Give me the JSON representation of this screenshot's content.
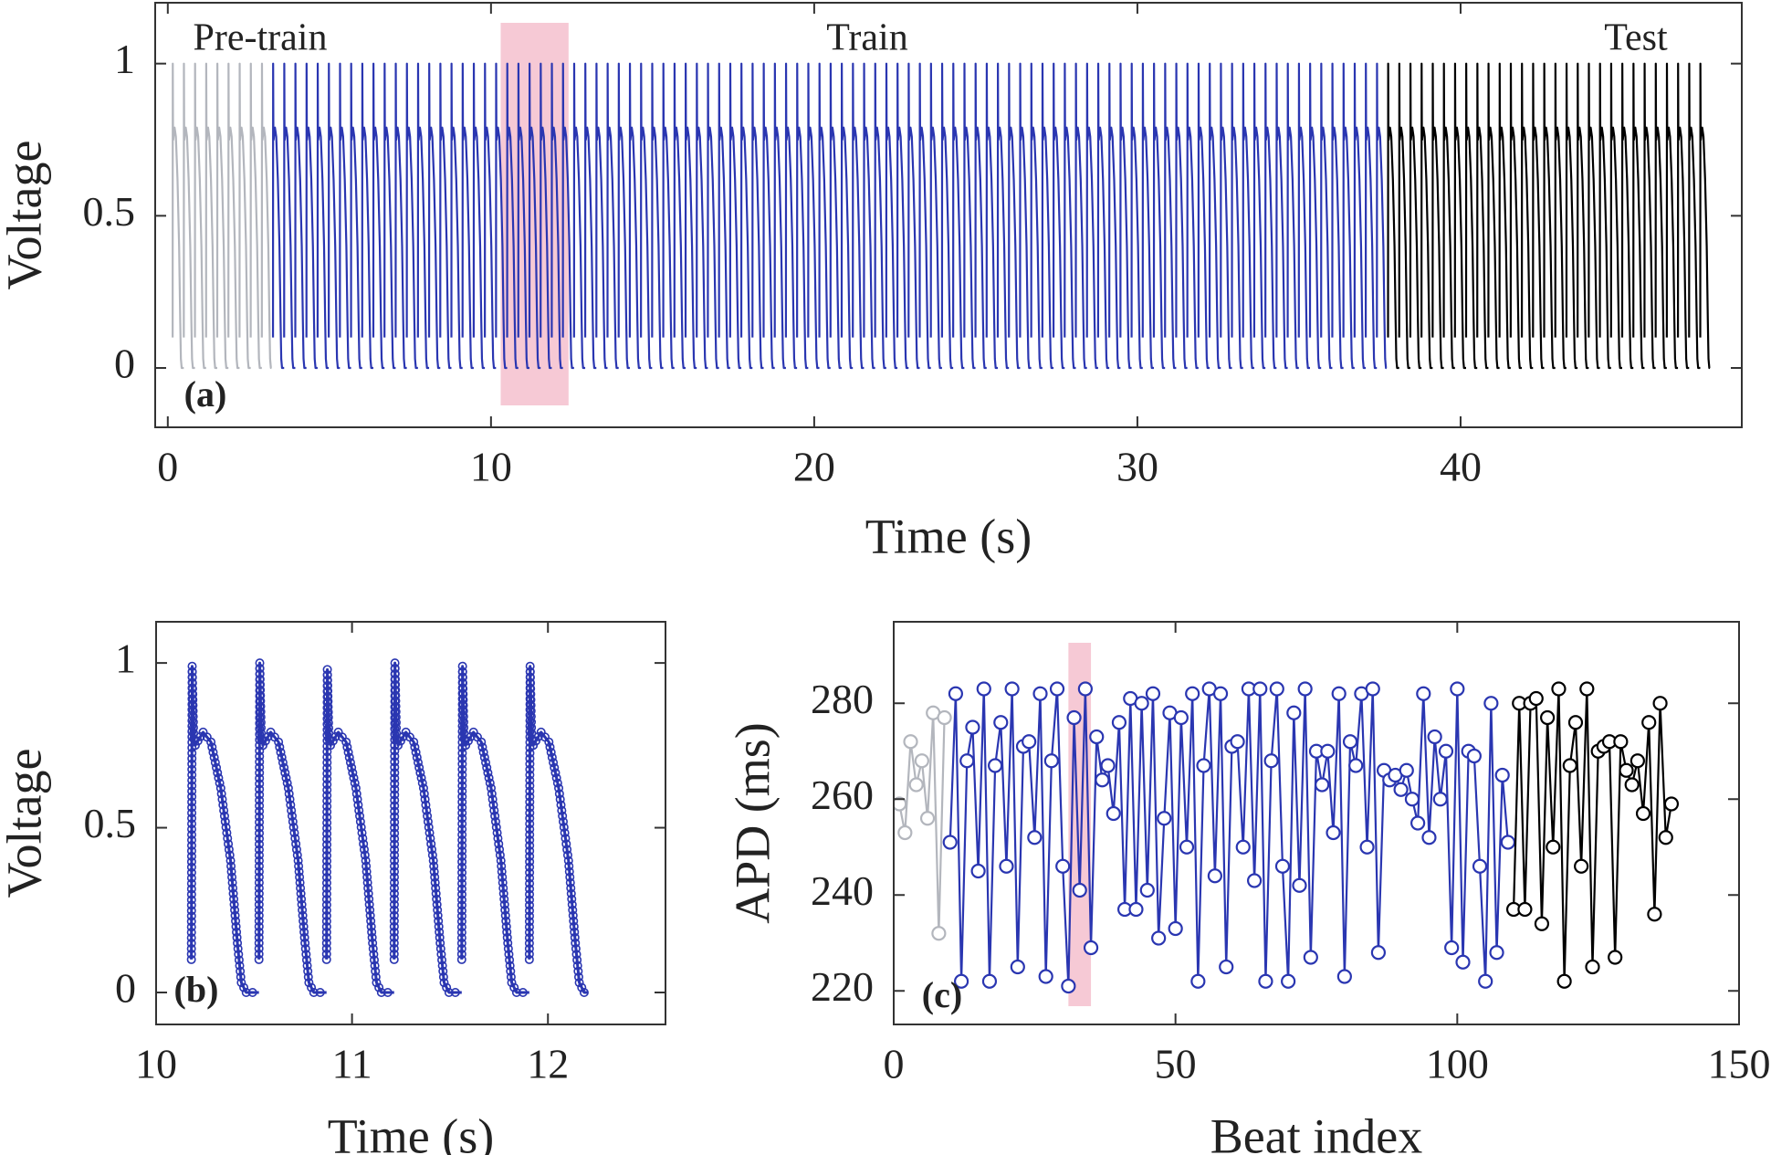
{
  "chart_data": [
    {
      "type": "trace",
      "xlabel": "Time (s)",
      "ylabel": "Voltage",
      "panel_label": "(a)",
      "xlim": [
        -0.39,
        48.7
      ],
      "ylim": [
        -0.195,
        1.2
      ],
      "xticks": [
        0,
        10,
        20,
        30,
        40
      ],
      "yticks": [
        0,
        0.5,
        1
      ],
      "highlight": [
        10.3,
        12.4
      ],
      "highlight_color": "#f6c9d5",
      "series": [
        {
          "name": "Pre-train",
          "color": "#b3b6bd",
          "x": [
            0.15,
            0.495,
            0.84,
            1.185,
            1.53,
            1.875,
            2.22,
            2.565,
            2.91
          ],
          "values": [
            1,
            1,
            1,
            1,
            1,
            1,
            1,
            1,
            1
          ]
        },
        {
          "name": "Train",
          "color": "#2a36b1",
          "x": [
            3.255,
            3.6,
            3.945,
            4.29,
            4.635,
            4.98,
            5.325,
            5.67,
            6.015,
            6.36,
            6.705,
            7.05,
            7.395,
            7.74,
            8.085,
            8.43,
            8.775,
            9.12,
            9.465,
            9.81,
            10.155,
            10.5,
            10.845,
            11.19,
            11.535,
            11.88,
            12.225,
            12.57,
            12.915,
            13.26,
            13.605,
            13.95,
            14.295,
            14.64,
            14.985,
            15.33,
            15.675,
            16.02,
            16.365,
            16.71,
            17.055,
            17.4,
            17.745,
            18.09,
            18.435,
            18.78,
            19.125,
            19.47,
            19.815,
            20.16,
            20.505,
            20.85,
            21.195,
            21.54,
            21.885,
            22.23,
            22.575,
            22.92,
            23.265,
            23.61,
            23.955,
            24.3,
            24.645,
            24.99,
            25.335,
            25.68,
            26.025,
            26.37,
            26.715,
            27.06,
            27.405,
            27.75,
            28.095,
            28.44,
            28.785,
            29.13,
            29.475,
            29.82,
            30.165,
            30.51,
            30.855,
            31.2,
            31.545,
            31.89,
            32.235,
            32.58,
            32.925,
            33.27,
            33.615,
            33.96,
            34.305,
            34.65,
            34.995,
            35.34,
            35.685,
            36.03,
            36.375,
            36.72,
            37.065,
            37.41
          ],
          "values": [
            1,
            1,
            1,
            1,
            1,
            1,
            1,
            1,
            1,
            1,
            1,
            1,
            1,
            1,
            1,
            1,
            1,
            1,
            1,
            1,
            1,
            1,
            1,
            1,
            1,
            1,
            1,
            1,
            1,
            1,
            1,
            1,
            1,
            1,
            1,
            1,
            1,
            1,
            1,
            1,
            1,
            1,
            1,
            1,
            1,
            1,
            1,
            1,
            1,
            1,
            1,
            1,
            1,
            1,
            1,
            1,
            1,
            1,
            1,
            1,
            1,
            1,
            1,
            1,
            1,
            1,
            1,
            1,
            1,
            1,
            1,
            1,
            1,
            1,
            1,
            1,
            1,
            1,
            1,
            1,
            1,
            1,
            1,
            1,
            1,
            1,
            1,
            1,
            1,
            1,
            1,
            1,
            1,
            1,
            1,
            1,
            1,
            1,
            1,
            1
          ]
        },
        {
          "name": "Test",
          "color": "#000000",
          "x": [
            37.755,
            38.1,
            38.445,
            38.79,
            39.135,
            39.48,
            39.825,
            40.17,
            40.515,
            40.86,
            41.205,
            41.55,
            41.895,
            42.24,
            42.585,
            42.93,
            43.275,
            43.62,
            43.965,
            44.31,
            44.655,
            45.0,
            45.345,
            45.69,
            46.035,
            46.38,
            46.725,
            47.07,
            47.415
          ],
          "values": [
            1,
            1,
            1,
            1,
            1,
            1,
            1,
            1,
            1,
            1,
            1,
            1,
            1,
            1,
            1,
            1,
            1,
            1,
            1,
            1,
            1,
            1,
            1,
            1,
            1,
            1,
            1,
            1,
            1
          ]
        }
      ]
    },
    {
      "type": "trace",
      "xlabel": "Time (s)",
      "ylabel": "Voltage",
      "panel_label": "(b)",
      "marker": "circle",
      "xlim": [
        10,
        12.6
      ],
      "ylim": [
        -0.097,
        1.125
      ],
      "xticks": [
        10,
        11,
        12
      ],
      "yticks": [
        0,
        0.5,
        1
      ],
      "series": [
        {
          "color": "#2a36b1",
          "x": [
            10.18,
            10.525,
            10.87,
            11.215,
            11.56,
            11.905
          ],
          "values": [
            0.99,
            1,
            0.98,
            1,
            0.99,
            0.99
          ]
        }
      ]
    },
    {
      "type": "line",
      "xlabel": "Beat index",
      "ylabel": "APD (ms)",
      "panel_label": "(c)",
      "marker": "circle",
      "xlim": [
        0,
        150
      ],
      "ylim": [
        213,
        297
      ],
      "xticks": [
        0,
        50,
        100,
        150
      ],
      "yticks": [
        220,
        240,
        260,
        280
      ],
      "highlight": [
        31,
        35
      ],
      "highlight_color": "#f6c9d5",
      "series": [
        {
          "color": "#b3b6bd",
          "x": [
            1,
            2,
            3,
            4,
            5,
            6,
            7,
            8,
            9
          ],
          "values": [
            259,
            253,
            272,
            263,
            268,
            256,
            278,
            232,
            277
          ]
        },
        {
          "color": "#2a36b1",
          "x": [
            10,
            11,
            12,
            13,
            14,
            15,
            16,
            17,
            18,
            19,
            20,
            21,
            22,
            23,
            24,
            25,
            26,
            27,
            28,
            29,
            30,
            31,
            32,
            33,
            34,
            35,
            36,
            37,
            38,
            39,
            40,
            41,
            42,
            43,
            44,
            45,
            46,
            47,
            48,
            49,
            50,
            51,
            52,
            53,
            54,
            55,
            56,
            57,
            58,
            59,
            60,
            61,
            62,
            63,
            64,
            65,
            66,
            67,
            68,
            69,
            70,
            71,
            72,
            73,
            74,
            75,
            76,
            77,
            78,
            79,
            80,
            81,
            82,
            83,
            84,
            85,
            86,
            87,
            88,
            89,
            90,
            91,
            92,
            93,
            94,
            95,
            96,
            97,
            98,
            99,
            100,
            101,
            102,
            103,
            104,
            105,
            106,
            107,
            108,
            109
          ],
          "values": [
            251,
            282,
            222,
            268,
            275,
            245,
            283,
            222,
            267,
            276,
            246,
            283,
            225,
            271,
            272,
            252,
            282,
            223,
            268,
            283,
            246,
            221,
            277,
            241,
            283,
            229,
            273,
            264,
            267,
            257,
            276,
            237,
            281,
            237,
            280,
            241,
            282,
            231,
            256,
            278,
            233,
            277,
            250,
            282,
            222,
            267,
            283,
            244,
            282,
            225,
            271,
            272,
            250,
            283,
            243,
            283,
            222,
            268,
            283,
            246,
            222,
            278,
            242,
            283,
            227,
            270,
            263,
            270,
            253,
            282,
            223,
            272,
            267,
            282,
            250,
            283,
            228,
            266,
            264,
            265,
            262,
            266,
            260,
            255,
            282,
            252,
            273,
            260,
            270,
            229,
            283,
            226,
            270,
            269,
            246,
            222,
            280,
            228,
            265,
            251
          ]
        },
        {
          "color": "#000000",
          "x": [
            110,
            111,
            112,
            113,
            114,
            115,
            116,
            117,
            118,
            119,
            120,
            121,
            122,
            123,
            124,
            125,
            126,
            127,
            128,
            129,
            130,
            131,
            132,
            133,
            134,
            135,
            136,
            137,
            138
          ],
          "values": [
            237,
            280,
            237,
            280,
            281,
            234,
            277,
            250,
            283,
            222,
            267,
            276,
            246,
            283,
            225,
            270,
            271,
            272,
            227,
            272,
            266,
            263,
            268,
            257,
            276,
            236,
            280,
            252,
            259
          ]
        }
      ]
    }
  ]
}
